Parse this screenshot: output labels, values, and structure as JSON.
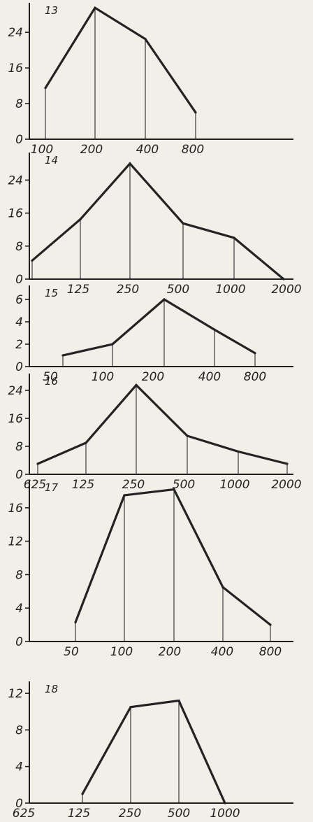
{
  "chart_data": [
    {
      "type": "line",
      "panel_number": "13",
      "y_ticks": [
        "0",
        "8",
        "16",
        "24"
      ],
      "ylim": [
        0,
        30
      ],
      "x_tick_labels": [
        "100",
        "200",
        "400",
        "800"
      ],
      "points": [
        {
          "x": "100",
          "y": 11.5
        },
        {
          "x": "200",
          "y": 29.5
        },
        {
          "x": "400",
          "y": 22.5
        },
        {
          "x": "800",
          "y": 6
        }
      ]
    },
    {
      "type": "line",
      "panel_number": "14",
      "y_ticks": [
        "0",
        "8",
        "16",
        "24"
      ],
      "ylim": [
        0,
        30
      ],
      "x_tick_labels": [
        "125",
        "250",
        "500",
        "1000",
        "2000"
      ],
      "points": [
        {
          "x": "62.5",
          "y": 4.5
        },
        {
          "x": "125",
          "y": 14.5
        },
        {
          "x": "250",
          "y": 28
        },
        {
          "x": "500",
          "y": 13.5
        },
        {
          "x": "1000",
          "y": 10
        },
        {
          "x": "2000",
          "y": 0
        }
      ]
    },
    {
      "type": "line",
      "panel_number": "15",
      "y_ticks": [
        "0",
        "2",
        "4",
        "6"
      ],
      "ylim": [
        0,
        7
      ],
      "x_tick_labels": [
        "50",
        "100",
        "200",
        "400",
        "800"
      ],
      "points": [
        {
          "x": "50",
          "y": 1
        },
        {
          "x": "100",
          "y": 2
        },
        {
          "x": "200",
          "y": 6
        },
        {
          "x": "400",
          "y": 3.3
        },
        {
          "x": "800",
          "y": 1.2
        }
      ]
    },
    {
      "type": "line",
      "panel_number": "16",
      "y_ticks": [
        "0",
        "8",
        "16",
        "24"
      ],
      "ylim": [
        0,
        28
      ],
      "x_tick_labels": [
        "625",
        "125",
        "250",
        "500",
        "1000",
        "2000"
      ],
      "points": [
        {
          "x": "62.5",
          "y": 3
        },
        {
          "x": "125",
          "y": 9
        },
        {
          "x": "250",
          "y": 25.5
        },
        {
          "x": "500",
          "y": 11
        },
        {
          "x": "1000",
          "y": 6.5
        },
        {
          "x": "2000",
          "y": 3
        }
      ]
    },
    {
      "type": "line",
      "panel_number": "17",
      "y_ticks": [
        "0",
        "4",
        "8",
        "12",
        "16"
      ],
      "ylim": [
        0,
        19
      ],
      "x_tick_labels": [
        "50",
        "100",
        "200",
        "400",
        "800"
      ],
      "points": [
        {
          "x": "50",
          "y": 2.3
        },
        {
          "x": "100",
          "y": 17.5
        },
        {
          "x": "200",
          "y": 18.2
        },
        {
          "x": "400",
          "y": 6.5
        },
        {
          "x": "800",
          "y": 2
        }
      ]
    },
    {
      "type": "line",
      "panel_number": "18",
      "y_ticks": [
        "0",
        "4",
        "8",
        "12"
      ],
      "ylim": [
        0,
        13
      ],
      "x_tick_labels": [
        "625",
        "125",
        "250",
        "500",
        "1000"
      ],
      "points": [
        {
          "x": "62.5",
          "y": 1
        },
        {
          "x": "125",
          "y": 10.5
        },
        {
          "x": "250",
          "y": 11.2
        },
        {
          "x": "500",
          "y": 0
        }
      ]
    }
  ]
}
